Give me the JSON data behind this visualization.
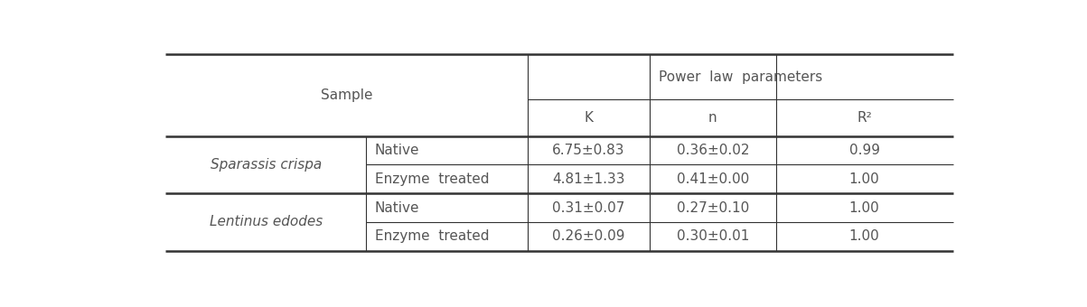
{
  "title": "Power law parameters",
  "col_header_sample": "Sample",
  "col_header_power": "Power  law  parameters",
  "sub_headers": [
    "K",
    "n",
    "R²"
  ],
  "rows": [
    {
      "group": "Sparassis crispa",
      "treatment": "Native",
      "K": "6.75±0.83",
      "n": "0.36±0.02",
      "R2": "0.99"
    },
    {
      "group": "Sparassis crispa",
      "treatment": "Enzyme  treated",
      "K": "4.81±1.33",
      "n": "0.41±0.00",
      "R2": "1.00"
    },
    {
      "group": "Lentinus edodes",
      "treatment": "Native",
      "K": "0.31±0.07",
      "n": "0.27±0.10",
      "R2": "1.00"
    },
    {
      "group": "Lentinus edodes",
      "treatment": "Enzyme  treated",
      "K": "0.26±0.09",
      "n": "0.30±0.01",
      "R2": "1.00"
    }
  ],
  "bg_color": "#ffffff",
  "text_color": "#555555",
  "line_color": "#333333",
  "font_size": 11,
  "fig_width": 12.03,
  "fig_height": 3.4,
  "dpi": 100
}
